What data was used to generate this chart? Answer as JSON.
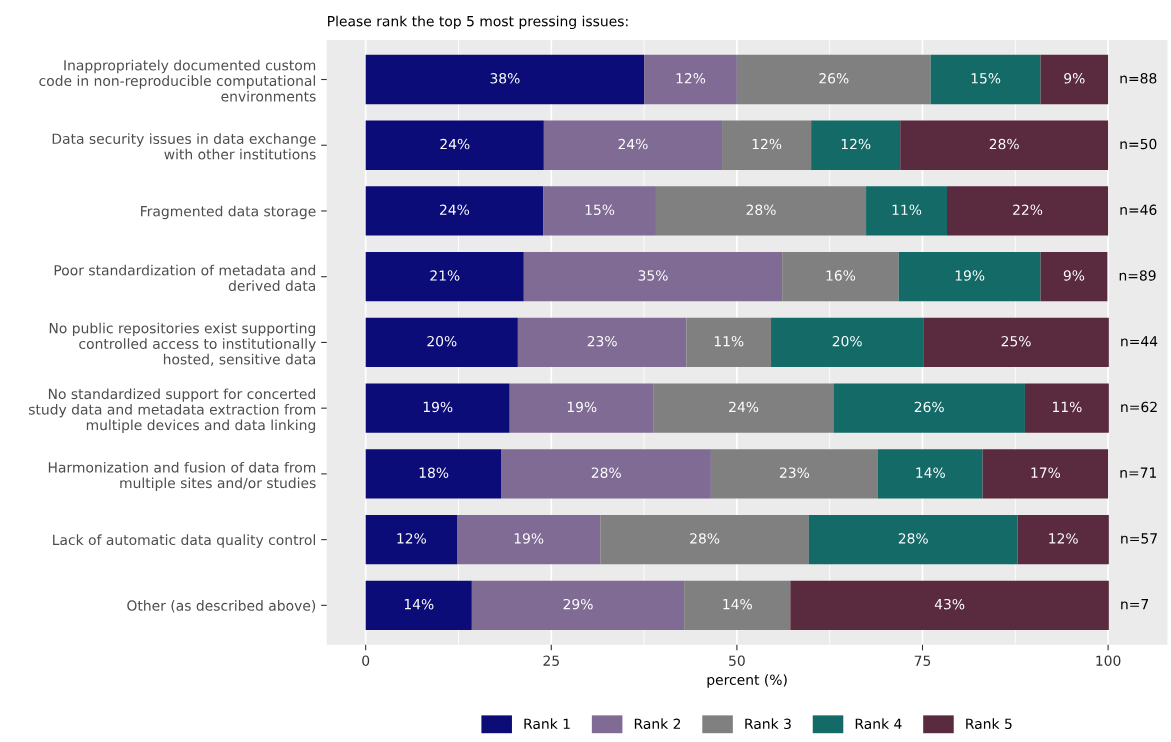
{
  "chart_data": {
    "type": "bar",
    "orientation": "horizontal",
    "stacked": true,
    "title": "Please rank the top 5 most pressing issues:",
    "xlabel": "percent (%)",
    "categories": [
      "Inappropriately documented custom\ncode in non-reproducible computational\nenvironments",
      "Data security issues in data exchange\nwith other institutions",
      "Fragmented data storage",
      "Poor standardization of metadata and\nderived data",
      "No public repositories exist supporting\ncontrolled access to institutionally\nhosted, sensitive data",
      "No standardized support for concerted\nstudy data and metadata extraction from\nmultiple devices and data linking",
      "Harmonization and fusion of data from\nmultiple sites and/or studies",
      "Lack of automatic data quality control",
      "Other (as described above)"
    ],
    "series": [
      {
        "name": "Rank 1",
        "color": "#0c0c78",
        "values": [
          37.5,
          24,
          23.9,
          21.3,
          20.5,
          19.4,
          18.3,
          12.3,
          14.3
        ],
        "value_labels": [
          "38%",
          "24%",
          "24%",
          "21%",
          "20%",
          "19%",
          "18%",
          "12%",
          "14%"
        ]
      },
      {
        "name": "Rank 2",
        "color": "#7f6b94",
        "values": [
          12.5,
          24,
          15.2,
          34.8,
          22.7,
          19.4,
          28.2,
          19.3,
          28.6
        ],
        "value_labels": [
          "12%",
          "24%",
          "15%",
          "35%",
          "23%",
          "19%",
          "28%",
          "19%",
          "29%"
        ]
      },
      {
        "name": "Rank 3",
        "color": "#808080",
        "values": [
          26.1,
          12,
          28.3,
          15.7,
          11.4,
          24.2,
          22.5,
          28.1,
          14.3
        ],
        "value_labels": [
          "26%",
          "12%",
          "28%",
          "16%",
          "11%",
          "24%",
          "23%",
          "28%",
          "14%"
        ]
      },
      {
        "name": "Rank 4",
        "color": "#136a67",
        "values": [
          14.8,
          12,
          10.9,
          19.1,
          20.5,
          25.8,
          14.1,
          28.1,
          0
        ],
        "value_labels": [
          "15%",
          "12%",
          "11%",
          "19%",
          "20%",
          "26%",
          "14%",
          "28%",
          null
        ]
      },
      {
        "name": "Rank 5",
        "color": "#5a2b3f",
        "values": [
          9.1,
          28,
          21.7,
          9.0,
          25.0,
          11.3,
          16.9,
          12.3,
          42.9
        ],
        "value_labels": [
          "9%",
          "28%",
          "22%",
          "9%",
          "25%",
          "11%",
          "17%",
          "12%",
          "43%"
        ]
      }
    ],
    "annotations": [
      "n=88",
      "n=50",
      "n=46",
      "n=89",
      "n=44",
      "n=62",
      "n=71",
      "n=57",
      "n=7"
    ],
    "xlim": [
      -5.25,
      108
    ],
    "xticks": [
      0,
      25,
      50,
      75,
      100
    ],
    "grid": "x",
    "legend": "bottom"
  }
}
